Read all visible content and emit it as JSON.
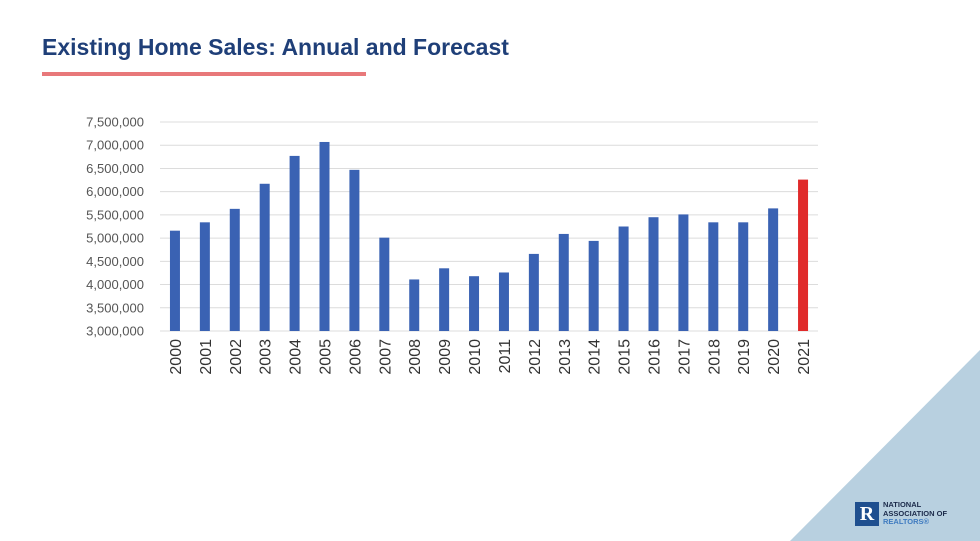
{
  "slide": {
    "title": "Existing Home Sales: Annual and Forecast"
  },
  "logo": {
    "line1": "NATIONAL",
    "line2": "ASSOCIATION OF",
    "line3": "REALTORS®",
    "mark": "R"
  },
  "colors": {
    "bar": "#3a62b3",
    "forecast_bar": "#e02a2a",
    "title": "#1f3f78",
    "underline": "#e8787a",
    "corner": "#b8d0e0"
  },
  "chart_data": {
    "type": "bar",
    "title": "",
    "xlabel": "",
    "ylabel": "",
    "ylim": [
      3000000,
      7500000
    ],
    "yticks": [
      "3,000,000",
      "3,500,000",
      "4,000,000",
      "4,500,000",
      "5,000,000",
      "5,500,000",
      "6,000,000",
      "6,500,000",
      "7,000,000",
      "7,500,000"
    ],
    "grid": true,
    "categories": [
      "2000",
      "2001",
      "2002",
      "2003",
      "2004",
      "2005",
      "2006",
      "2007",
      "2008",
      "2009",
      "2010",
      "2011",
      "2012",
      "2013",
      "2014",
      "2015",
      "2016",
      "2017",
      "2018",
      "2019",
      "2020",
      "2021"
    ],
    "values": [
      5160000,
      5340000,
      5630000,
      6170000,
      6770000,
      7070000,
      6470000,
      5010000,
      4110000,
      4350000,
      4180000,
      4260000,
      4660000,
      5090000,
      4940000,
      5250000,
      5450000,
      5510000,
      5340000,
      5340000,
      5640000,
      6260000
    ],
    "highlight": {
      "category": "2021",
      "meaning_color": "#e02a2a"
    }
  }
}
